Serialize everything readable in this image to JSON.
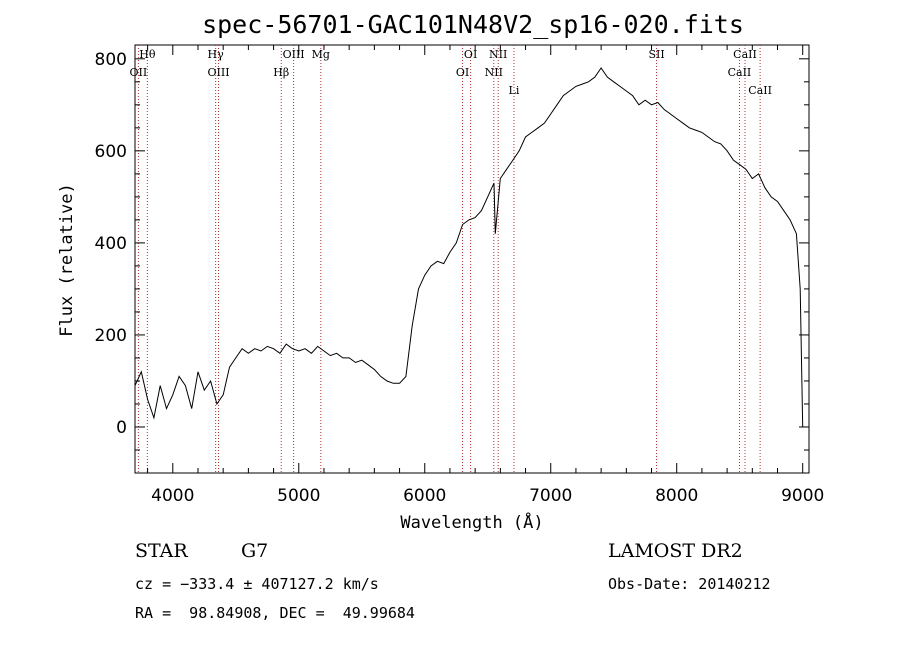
{
  "chart_data": {
    "type": "line",
    "title": "spec-56701-GAC101N48V2_sp16-020.fits",
    "xlabel": "Wavelength (Å)",
    "ylabel": "Flux (relative)",
    "xlim": [
      3700,
      9050
    ],
    "ylim": [
      -100,
      830
    ],
    "xticks": [
      4000,
      5000,
      6000,
      7000,
      8000,
      9000
    ],
    "yticks": [
      0,
      200,
      400,
      600,
      800
    ],
    "grid": false,
    "series": [
      {
        "x": [
          3700,
          3750,
          3800,
          3850,
          3900,
          3950,
          4000,
          4050,
          4100,
          4150,
          4200,
          4250,
          4300,
          4350,
          4400,
          4450,
          4500,
          4550,
          4600,
          4650,
          4700,
          4750,
          4800,
          4850,
          4900,
          4950,
          5000,
          5050,
          5100,
          5150,
          5200,
          5250,
          5300,
          5350,
          5400,
          5450,
          5500,
          5550,
          5600,
          5650,
          5700,
          5750,
          5800,
          5850,
          5900,
          5950,
          6000,
          6050,
          6100,
          6150,
          6200,
          6250,
          6300,
          6350,
          6400,
          6450,
          6500,
          6550,
          6560,
          6600,
          6650,
          6700,
          6750,
          6800,
          6850,
          6900,
          6950,
          7000,
          7050,
          7100,
          7150,
          7200,
          7250,
          7300,
          7350,
          7400,
          7450,
          7500,
          7550,
          7600,
          7650,
          7700,
          7750,
          7800,
          7850,
          7900,
          7950,
          8000,
          8050,
          8100,
          8150,
          8200,
          8250,
          8300,
          8350,
          8400,
          8450,
          8500,
          8550,
          8600,
          8650,
          8700,
          8750,
          8800,
          8850,
          8900,
          8950,
          8980,
          9000
        ],
        "y": [
          90,
          120,
          60,
          20,
          90,
          40,
          70,
          110,
          90,
          40,
          120,
          80,
          100,
          50,
          70,
          130,
          150,
          170,
          160,
          170,
          165,
          175,
          170,
          160,
          180,
          170,
          165,
          170,
          160,
          175,
          165,
          155,
          160,
          150,
          150,
          140,
          145,
          135,
          125,
          110,
          100,
          95,
          95,
          110,
          220,
          300,
          330,
          350,
          360,
          355,
          380,
          400,
          440,
          450,
          455,
          470,
          500,
          530,
          420,
          540,
          560,
          580,
          600,
          630,
          640,
          650,
          660,
          680,
          700,
          720,
          730,
          740,
          745,
          750,
          760,
          780,
          760,
          750,
          740,
          730,
          720,
          700,
          710,
          700,
          705,
          690,
          680,
          670,
          660,
          650,
          645,
          640,
          630,
          620,
          615,
          600,
          580,
          570,
          560,
          540,
          550,
          520,
          500,
          490,
          470,
          450,
          420,
          300,
          0
        ]
      }
    ],
    "lines": [
      {
        "label": "Hθ",
        "x": 3798
      },
      {
        "label": "OII",
        "x": 3727
      },
      {
        "label": "Hγ",
        "x": 4340
      },
      {
        "label": "OIII",
        "x": 4363
      },
      {
        "label": "OIII",
        "x": 4959
      },
      {
        "label": "Hβ",
        "x": 4861
      },
      {
        "label": "Mg",
        "x": 5175
      },
      {
        "label": "OI",
        "x": 6364
      },
      {
        "label": "OI",
        "x": 6300
      },
      {
        "label": "NII",
        "x": 6583
      },
      {
        "label": "NII",
        "x": 6548
      },
      {
        "label": "Li",
        "x": 6708
      },
      {
        "label": "SII",
        "x": 7840
      },
      {
        "label": "CaII",
        "x": 8542
      },
      {
        "label": "CaII",
        "x": 8498
      },
      {
        "label": "CaII",
        "x": 8662
      }
    ]
  },
  "info": {
    "class_label": "STAR",
    "subclass_label": "G7",
    "survey": "LAMOST DR2",
    "cz": "cz = −333.4 ± 407127.2 km/s",
    "obs_date": "Obs-Date: 20140212",
    "coords": "RA =  98.84908, DEC =  49.99684"
  }
}
